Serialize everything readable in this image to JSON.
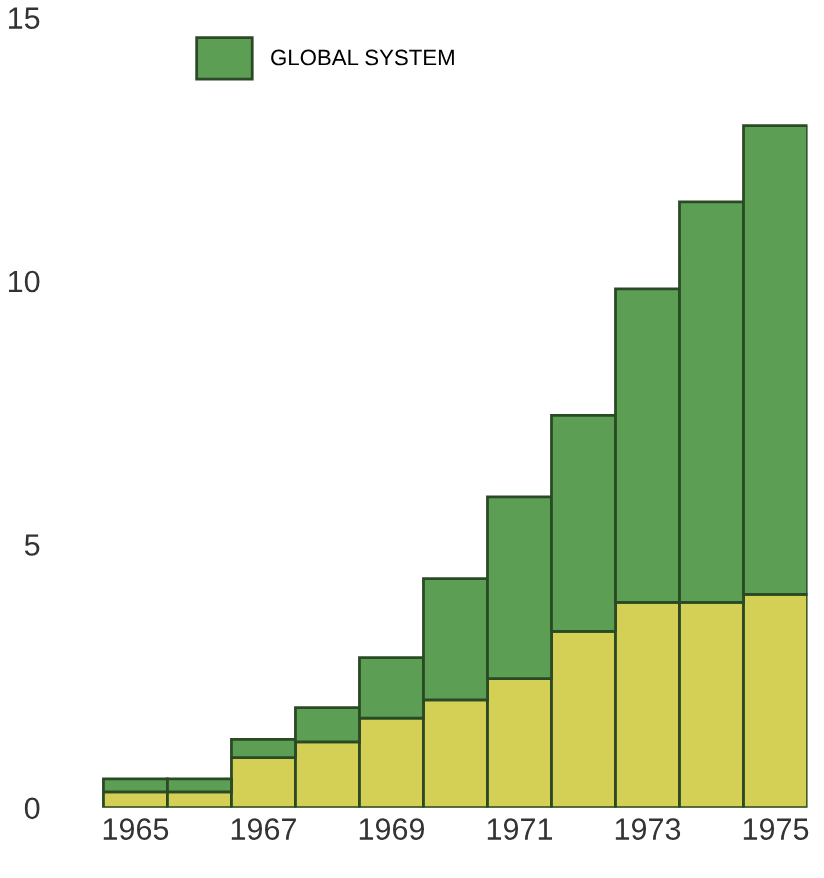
{
  "chart_data": {
    "type": "bar",
    "stacked": true,
    "categories": [
      "1965",
      null,
      "1967",
      null,
      "1969",
      null,
      "1971",
      null,
      "1973",
      null,
      "1975"
    ],
    "series": [
      {
        "color": "#d4cf55",
        "values": [
          0.3,
          0.3,
          0.95,
          1.25,
          1.7,
          2.05,
          2.45,
          3.35,
          3.9,
          3.9,
          4.05
        ]
      },
      {
        "name": "GLOBAL SYSTEM",
        "color": "#5d9e55",
        "values": [
          0.25,
          0.25,
          0.35,
          0.65,
          1.15,
          2.3,
          3.45,
          4.1,
          5.95,
          7.6,
          8.9
        ]
      }
    ],
    "ylim": [
      0,
      15
    ],
    "yticks": [
      0,
      5,
      10,
      15
    ],
    "grid": false,
    "legend": "top left"
  }
}
